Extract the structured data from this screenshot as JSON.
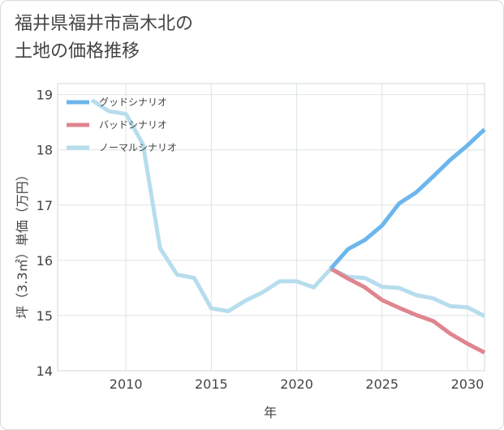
{
  "title_lines": [
    "福井県福井市高木北の",
    "土地の価格推移"
  ],
  "chart_data": {
    "type": "line",
    "title": "福井県福井市高木北の土地の価格推移",
    "xlabel": "年",
    "ylabel": "坪（3.3㎡）単価（万円）",
    "xlim": [
      2006,
      2031
    ],
    "ylim": [
      14,
      19.2
    ],
    "xticks": [
      2010,
      2015,
      2020,
      2025,
      2030
    ],
    "yticks": [
      14,
      15,
      16,
      17,
      18,
      19
    ],
    "legend_position": "top-left",
    "series": [
      {
        "name": "グッドシナリオ",
        "color": "#6cb6ec",
        "x": [
          2022,
          2023,
          2024,
          2025,
          2026,
          2027,
          2028,
          2029,
          2030,
          2031
        ],
        "y": [
          15.85,
          16.2,
          16.37,
          16.63,
          17.03,
          17.23,
          17.52,
          17.82,
          18.08,
          18.37
        ]
      },
      {
        "name": "バッドシナリオ",
        "color": "#df858e",
        "x": [
          2022,
          2023,
          2024,
          2025,
          2026,
          2027,
          2028,
          2029,
          2030,
          2031
        ],
        "y": [
          15.85,
          15.67,
          15.51,
          15.28,
          15.14,
          15.01,
          14.9,
          14.67,
          14.49,
          14.33
        ]
      },
      {
        "name": "ノーマルシナリオ",
        "color": "#b7dded",
        "x": [
          2008,
          2009,
          2010,
          2011,
          2012,
          2013,
          2014,
          2015,
          2016,
          2017,
          2018,
          2019,
          2020,
          2021,
          2022,
          2023,
          2024,
          2025,
          2026,
          2027,
          2028,
          2029,
          2030,
          2031
        ],
        "y": [
          18.9,
          18.7,
          18.65,
          18.1,
          16.22,
          15.74,
          15.68,
          15.13,
          15.08,
          15.27,
          15.42,
          15.62,
          15.62,
          15.51,
          15.85,
          15.7,
          15.68,
          15.52,
          15.5,
          15.37,
          15.31,
          15.17,
          15.15,
          14.99
        ]
      }
    ]
  }
}
